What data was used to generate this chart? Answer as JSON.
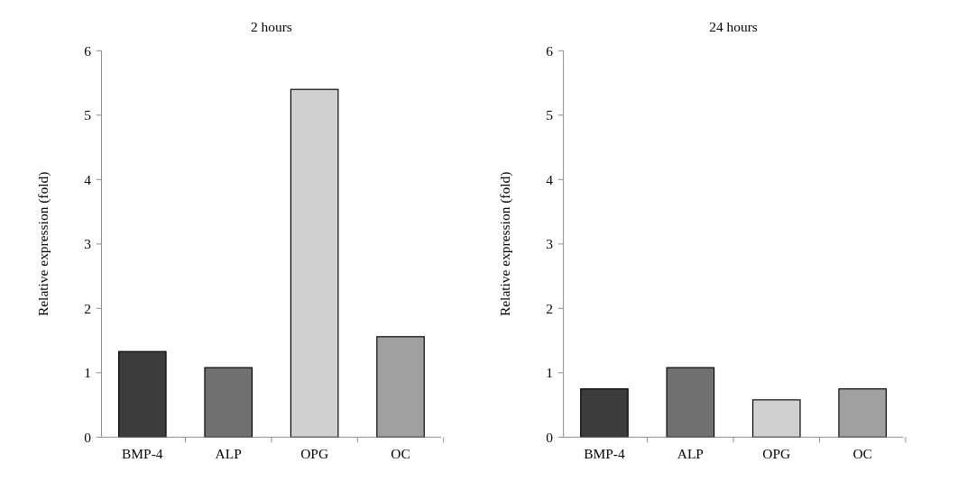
{
  "chart_data": [
    {
      "type": "bar",
      "title": "2 hours",
      "ylabel": "Relative expression (fold)",
      "categories": [
        "BMP-4",
        "ALP",
        "OPG",
        "OC"
      ],
      "values": [
        1.33,
        1.08,
        5.4,
        1.56
      ],
      "colors": [
        "#3c3c3c",
        "#707070",
        "#d0d0d0",
        "#a0a0a0"
      ],
      "ylim": [
        0,
        6
      ],
      "yticks": [
        0,
        1,
        2,
        3,
        4,
        5,
        6
      ],
      "grid": false
    },
    {
      "type": "bar",
      "title": "24 hours",
      "ylabel": "Relative expression (fold)",
      "categories": [
        "BMP-4",
        "ALP",
        "OPG",
        "OC"
      ],
      "values": [
        0.75,
        1.08,
        0.58,
        0.75
      ],
      "colors": [
        "#3c3c3c",
        "#707070",
        "#d0d0d0",
        "#a0a0a0"
      ],
      "ylim": [
        0,
        6
      ],
      "yticks": [
        0,
        1,
        2,
        3,
        4,
        5,
        6
      ],
      "grid": false
    }
  ]
}
